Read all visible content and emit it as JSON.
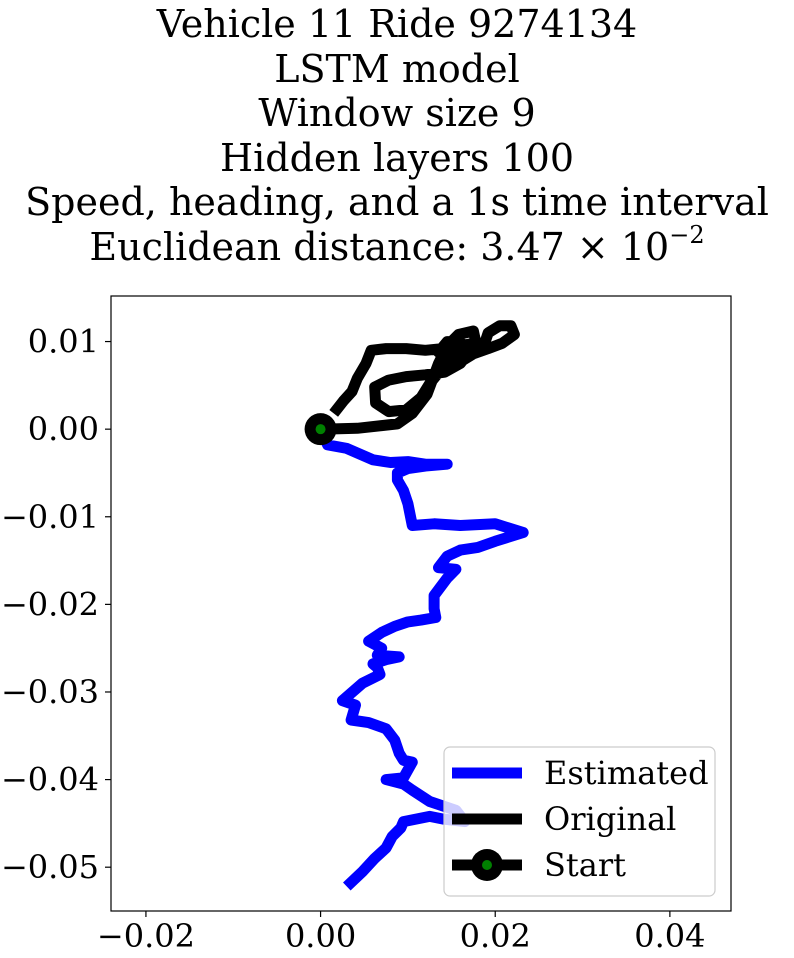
{
  "chart_data": {
    "type": "line",
    "title_lines": [
      "Vehicle 11 Ride 9274134",
      "LSTM model",
      "Window size 9",
      "Hidden layers 100",
      "Speed, heading, and a 1s time interval"
    ],
    "title_distance_prefix": "Euclidean distance: 3.47 × 10",
    "title_distance_exponent": "−2",
    "xlim": [
      -0.024,
      0.047
    ],
    "ylim": [
      -0.055,
      0.0152
    ],
    "xticks": [
      -0.02,
      0.0,
      0.02,
      0.04
    ],
    "xtick_labels": [
      "−0.02",
      "0.00",
      "0.02",
      "0.04"
    ],
    "yticks": [
      0.01,
      0.0,
      -0.01,
      -0.02,
      -0.03,
      -0.04,
      -0.05
    ],
    "ytick_labels": [
      "0.01",
      "0.00",
      "−0.01",
      "−0.02",
      "−0.03",
      "−0.04",
      "−0.05"
    ],
    "grid": false,
    "legend_position": "lower-right",
    "series": [
      {
        "name": "Estimated",
        "color": "#0000ff",
        "points": [
          [
            0.0,
            0.0
          ],
          [
            0.0008,
            -0.0018
          ],
          [
            0.003,
            -0.0022
          ],
          [
            0.006,
            -0.0035
          ],
          [
            0.008,
            -0.0038
          ],
          [
            0.01,
            -0.0037
          ],
          [
            0.012,
            -0.004
          ],
          [
            0.0145,
            -0.004
          ],
          [
            0.012,
            -0.0042
          ],
          [
            0.01,
            -0.0045
          ],
          [
            0.0088,
            -0.005
          ],
          [
            0.0088,
            -0.0058
          ],
          [
            0.0095,
            -0.007
          ],
          [
            0.01,
            -0.0085
          ],
          [
            0.0105,
            -0.011
          ],
          [
            0.013,
            -0.0108
          ],
          [
            0.016,
            -0.011
          ],
          [
            0.02,
            -0.0108
          ],
          [
            0.0232,
            -0.0118
          ],
          [
            0.02,
            -0.0128
          ],
          [
            0.018,
            -0.0135
          ],
          [
            0.016,
            -0.0138
          ],
          [
            0.0145,
            -0.0145
          ],
          [
            0.0135,
            -0.0158
          ],
          [
            0.0155,
            -0.016
          ],
          [
            0.0145,
            -0.017
          ],
          [
            0.013,
            -0.019
          ],
          [
            0.013,
            -0.0205
          ],
          [
            0.0132,
            -0.0215
          ],
          [
            0.0115,
            -0.0218
          ],
          [
            0.01,
            -0.022
          ],
          [
            0.0085,
            -0.0225
          ],
          [
            0.007,
            -0.0232
          ],
          [
            0.0055,
            -0.0242
          ],
          [
            0.007,
            -0.025
          ],
          [
            0.0065,
            -0.0258
          ],
          [
            0.009,
            -0.026
          ],
          [
            0.0075,
            -0.0263
          ],
          [
            0.006,
            -0.0268
          ],
          [
            0.0065,
            -0.0272
          ],
          [
            0.0068,
            -0.028
          ],
          [
            0.0048,
            -0.029
          ],
          [
            0.0025,
            -0.031
          ],
          [
            0.004,
            -0.0315
          ],
          [
            0.0035,
            -0.0332
          ],
          [
            0.0055,
            -0.0335
          ],
          [
            0.0075,
            -0.0342
          ],
          [
            0.0085,
            -0.0355
          ],
          [
            0.009,
            -0.037
          ],
          [
            0.0095,
            -0.0378
          ],
          [
            0.0105,
            -0.038
          ],
          [
            0.0095,
            -0.0398
          ],
          [
            0.0075,
            -0.04
          ],
          [
            0.0095,
            -0.0405
          ],
          [
            0.0105,
            -0.0412
          ],
          [
            0.0125,
            -0.0425
          ],
          [
            0.0155,
            -0.0435
          ],
          [
            0.0165,
            -0.0448
          ],
          [
            0.014,
            -0.0445
          ],
          [
            0.0125,
            -0.0442
          ],
          [
            0.011,
            -0.0445
          ],
          [
            0.0095,
            -0.0448
          ],
          [
            0.0092,
            -0.0455
          ],
          [
            0.0082,
            -0.0465
          ],
          [
            0.0075,
            -0.0478
          ],
          [
            0.0062,
            -0.049
          ],
          [
            0.0048,
            -0.0505
          ],
          [
            0.003,
            -0.0522
          ]
        ]
      },
      {
        "name": "Original",
        "color": "#000000",
        "points": [
          [
            0.0,
            0.0
          ],
          [
            0.0042,
            0.0001
          ],
          [
            0.0088,
            0.0006
          ],
          [
            0.0105,
            0.0018
          ],
          [
            0.0122,
            0.004
          ],
          [
            0.0135,
            0.0075
          ],
          [
            0.0145,
            0.0095
          ],
          [
            0.0158,
            0.0108
          ],
          [
            0.0175,
            0.0112
          ],
          [
            0.0178,
            0.0098
          ],
          [
            0.016,
            0.0075
          ],
          [
            0.0142,
            0.0065
          ],
          [
            0.012,
            0.0062
          ],
          [
            0.0098,
            0.006
          ],
          [
            0.0078,
            0.0056
          ],
          [
            0.0062,
            0.0048
          ],
          [
            0.0063,
            0.003
          ],
          [
            0.0078,
            0.002
          ],
          [
            0.0098,
            0.0022
          ],
          [
            0.0115,
            0.0036
          ],
          [
            0.0125,
            0.0052
          ],
          [
            0.0138,
            0.0068
          ],
          [
            0.0148,
            0.0078
          ],
          [
            0.0158,
            0.0088
          ],
          [
            0.016,
            0.01
          ],
          [
            0.0145,
            0.01
          ],
          [
            0.0135,
            0.0088
          ],
          [
            0.0148,
            0.0078
          ],
          [
            0.0162,
            0.0078
          ],
          [
            0.0175,
            0.0086
          ],
          [
            0.0192,
            0.0092
          ],
          [
            0.0208,
            0.0098
          ],
          [
            0.0222,
            0.0108
          ],
          [
            0.0218,
            0.0118
          ],
          [
            0.0205,
            0.0118
          ],
          [
            0.0192,
            0.011
          ],
          [
            0.0188,
            0.0098
          ],
          [
            0.0175,
            0.0098
          ],
          [
            0.016,
            0.0095
          ],
          [
            0.014,
            0.0092
          ],
          [
            0.012,
            0.009
          ],
          [
            0.0098,
            0.0092
          ],
          [
            0.0075,
            0.0092
          ],
          [
            0.0058,
            0.009
          ],
          [
            0.0052,
            0.0075
          ],
          [
            0.0042,
            0.0058
          ],
          [
            0.0036,
            0.0043
          ],
          [
            0.0026,
            0.0032
          ],
          [
            0.0015,
            0.0018
          ]
        ]
      }
    ],
    "start_point": {
      "name": "Start",
      "x": 0.0,
      "y": 0.0,
      "color": "#008000"
    },
    "legend_entries": [
      "Estimated",
      "Original",
      "Start"
    ]
  }
}
